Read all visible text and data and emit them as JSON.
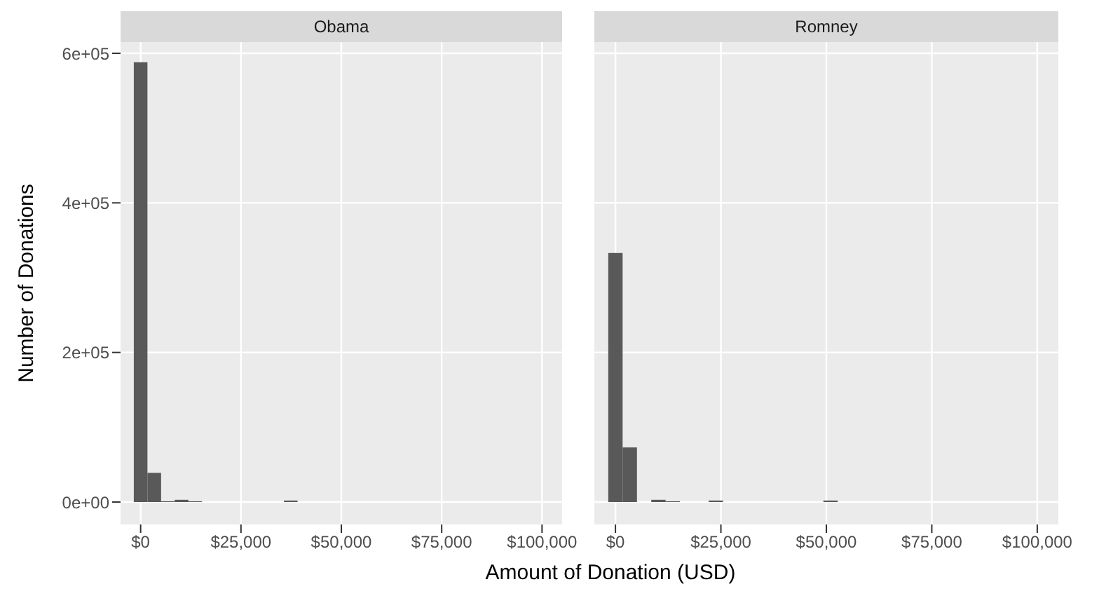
{
  "chart_data": [
    {
      "type": "histogram",
      "title": "Obama",
      "xlabel": "Amount of Donation (USD)",
      "ylabel": "Number of Donations",
      "color": "#595959",
      "grid": true,
      "bins": [
        -1700,
        1700,
        5100,
        8500,
        11900,
        15300,
        18700,
        22100,
        25500,
        28900,
        32300,
        35700,
        39100,
        42500,
        45900,
        49300,
        52700,
        56100,
        59500,
        62900,
        66300,
        69700,
        73100,
        76500,
        79900,
        83300,
        86700,
        90100,
        93500,
        96900,
        100300,
        103700
      ],
      "values": [
        588000,
        39000,
        1000,
        3000,
        1000,
        0,
        0,
        0,
        0,
        0,
        0,
        2000,
        0,
        0,
        0,
        0,
        0,
        0,
        0,
        0,
        0,
        0,
        0,
        0,
        0,
        0,
        0,
        0,
        0,
        0,
        0
      ],
      "xlim": [
        -5000,
        105000
      ],
      "xticks": [
        {
          "value": 0,
          "label": "$0"
        },
        {
          "value": 25000,
          "label": "$25,000"
        },
        {
          "value": 50000,
          "label": "$50,000"
        },
        {
          "value": 75000,
          "label": "$75,000"
        },
        {
          "value": 100000,
          "label": "$100,000"
        }
      ],
      "ylim": [
        -30000,
        615000
      ],
      "yticks": [
        {
          "value": 0,
          "label": "0e+00"
        },
        {
          "value": 200000,
          "label": "2e+05"
        },
        {
          "value": 400000,
          "label": "4e+05"
        },
        {
          "value": 600000,
          "label": "6e+05"
        }
      ]
    },
    {
      "type": "histogram",
      "title": "Romney",
      "color": "#595959",
      "grid": true,
      "tick_labels": "x",
      "bins": [
        -1700,
        1700,
        5100,
        8500,
        11900,
        15300,
        18700,
        22100,
        25500,
        28900,
        32300,
        35700,
        39100,
        42500,
        45900,
        49300,
        52700,
        56100,
        59500,
        62900,
        66300,
        69700,
        73100,
        76500,
        79900,
        83300,
        86700,
        90100,
        93500,
        96900,
        100300,
        103700
      ],
      "values": [
        333000,
        73000,
        0,
        3000,
        1000,
        0,
        0,
        2000,
        0,
        0,
        0,
        0,
        0,
        0,
        0,
        2000,
        0,
        0,
        0,
        0,
        0,
        0,
        0,
        0,
        0,
        0,
        0,
        0,
        0,
        0,
        0
      ],
      "xlim": [
        -5000,
        105000
      ],
      "xticks": [
        {
          "value": 0,
          "label": "$0"
        },
        {
          "value": 25000,
          "label": "$25,000"
        },
        {
          "value": 50000,
          "label": "$50,000"
        },
        {
          "value": 75000,
          "label": "$75,000"
        },
        {
          "value": 100000,
          "label": "$100,000"
        }
      ],
      "ylim": [
        -30000,
        615000
      ],
      "yticks": [
        0,
        200000,
        400000,
        600000
      ]
    }
  ]
}
